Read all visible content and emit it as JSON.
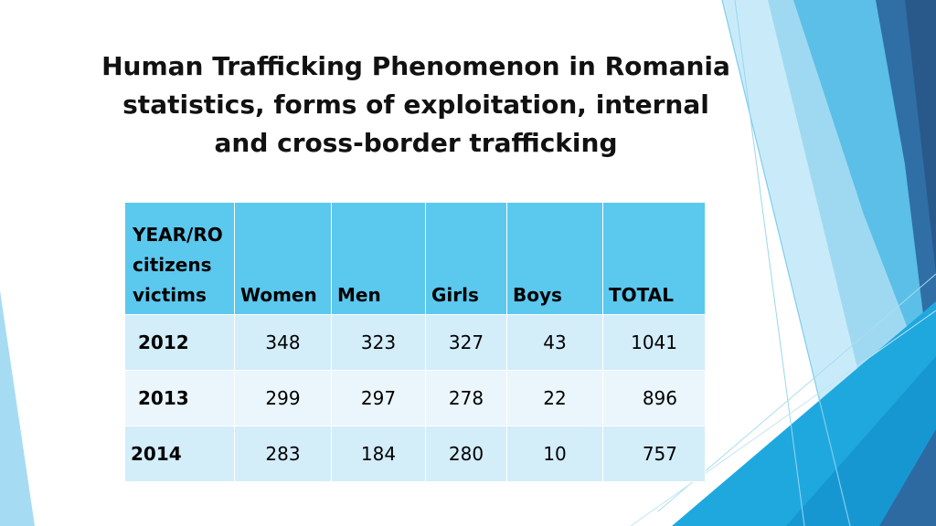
{
  "slide": {
    "title_lines": [
      "Human Trafficking Phenomenon in Romania",
      "statistics, forms of exploitation, internal",
      "and cross-border trafficking"
    ]
  },
  "table": {
    "header": {
      "year_label_lines": [
        "YEAR/RO",
        "citizens",
        "victims"
      ],
      "columns": [
        "Women",
        "Men",
        "Girls",
        "Boys",
        "TOTAL"
      ]
    },
    "rows": [
      {
        "year": "2012",
        "values": [
          "348",
          "323",
          "327",
          "43",
          "1041"
        ]
      },
      {
        "year": "2013",
        "values": [
          "299",
          "297",
          "278",
          "22",
          "896"
        ]
      },
      {
        "year": "2014",
        "values": [
          "283",
          "184",
          "280",
          "10",
          "757"
        ]
      }
    ]
  },
  "colors": {
    "header_fill": "#5bc8ee",
    "row_band_dark": "#d3edf9",
    "row_band_light": "#eaf6fc",
    "accent_blue": "#1f9fd9",
    "accent_navy": "#2b5f8f"
  }
}
